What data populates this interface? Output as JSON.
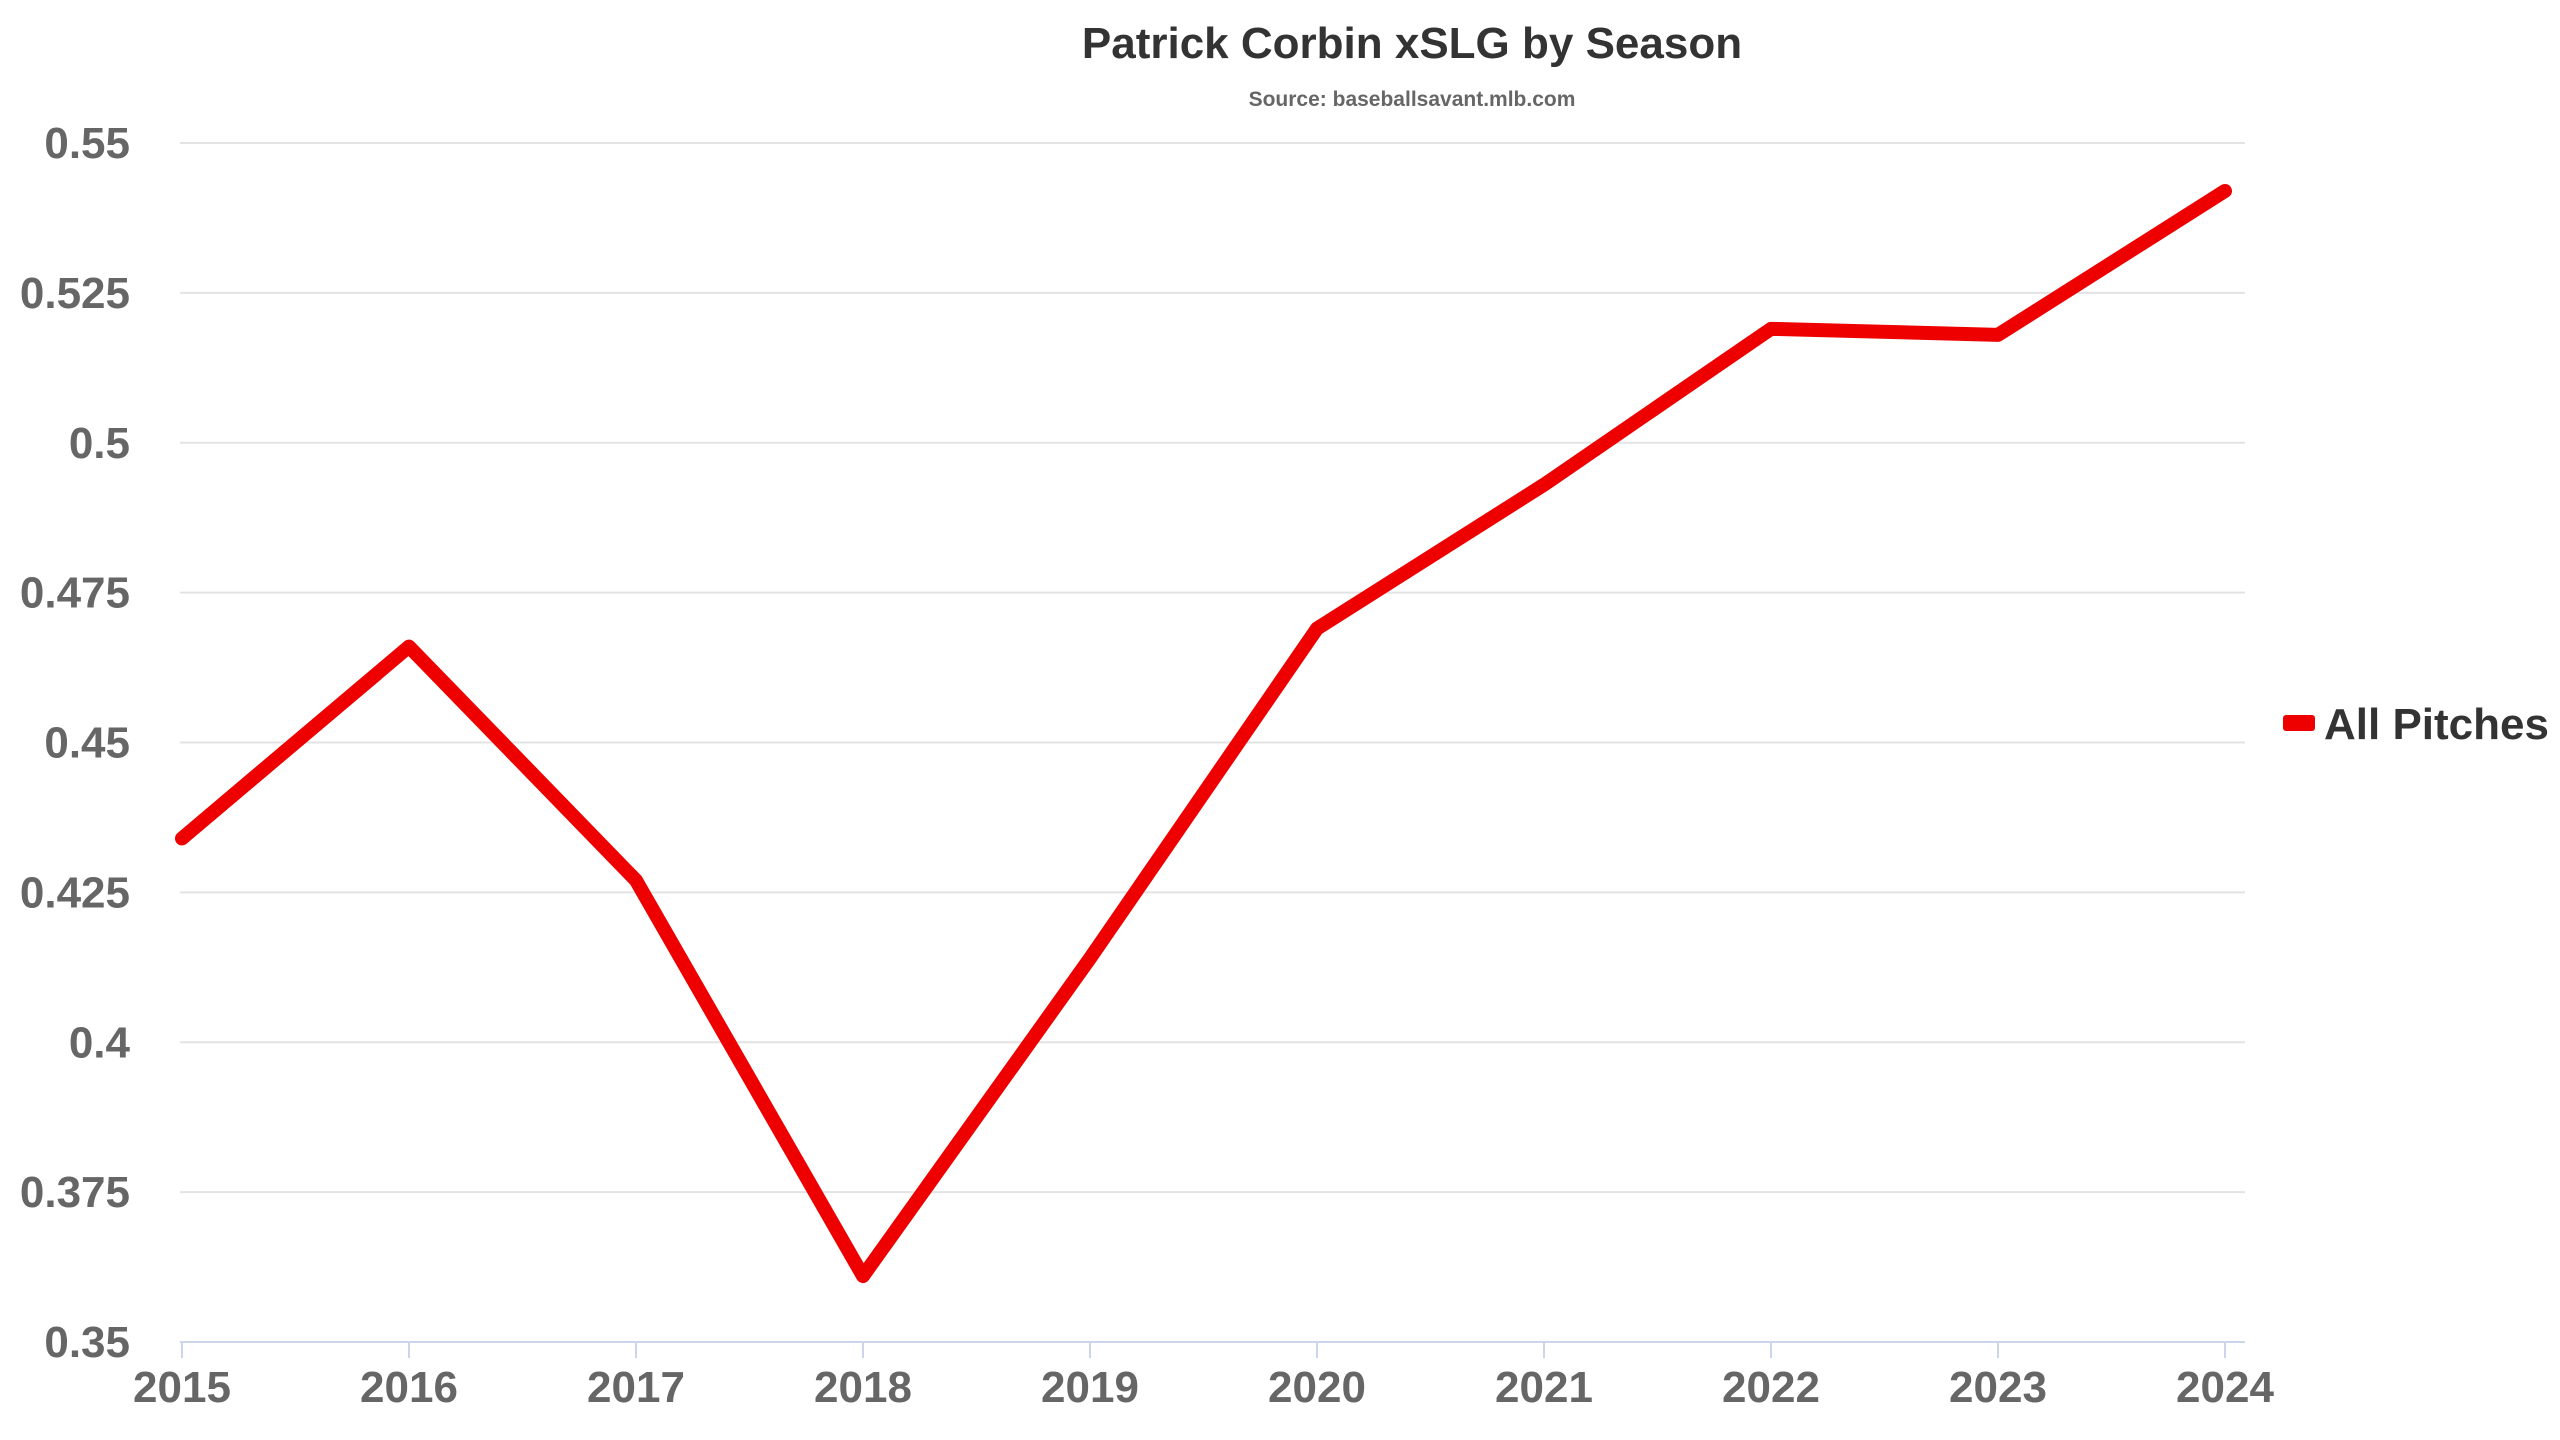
{
  "chart_data": {
    "type": "line",
    "title": "Patrick Corbin xSLG by Season",
    "subtitle": "Source: baseballsavant.mlb.com",
    "xlabel": "",
    "ylabel": "",
    "categories": [
      "2015",
      "2016",
      "2017",
      "2018",
      "2019",
      "2020",
      "2021",
      "2022",
      "2023",
      "2024"
    ],
    "series": [
      {
        "name": "All Pitches",
        "color": "#ee0000",
        "values": [
          0.434,
          0.466,
          0.427,
          0.361,
          0.414,
          0.469,
          0.493,
          0.519,
          0.518,
          0.542
        ]
      }
    ],
    "ylim": [
      0.35,
      0.55
    ],
    "yticks": [
      "0.35",
      "0.375",
      "0.4",
      "0.425",
      "0.45",
      "0.475",
      "0.5",
      "0.525",
      "0.55"
    ],
    "grid": true,
    "legend_position": "right"
  }
}
